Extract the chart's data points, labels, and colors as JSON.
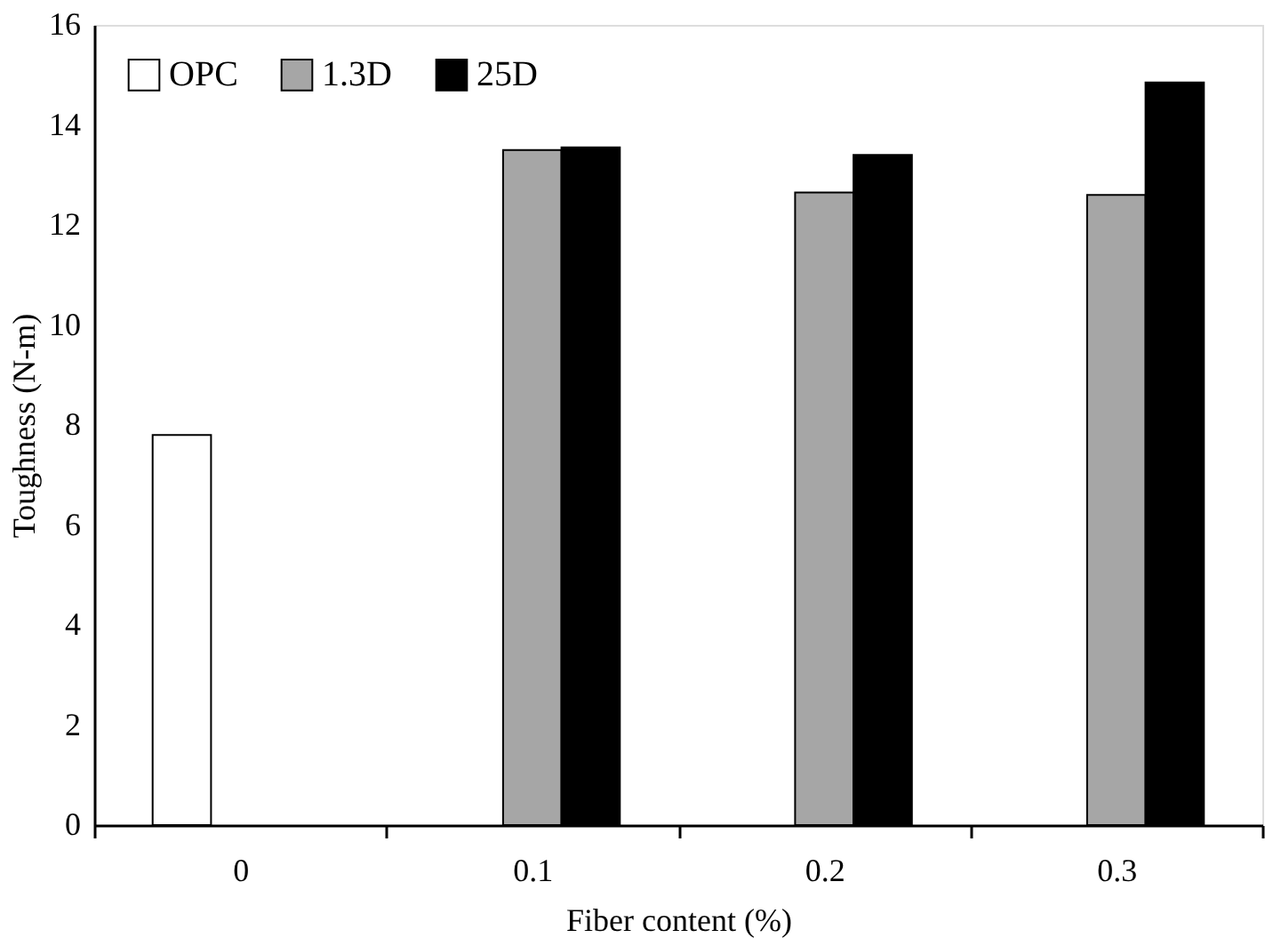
{
  "chart_data": {
    "type": "bar",
    "xlabel": "Fiber content (%)",
    "ylabel": "Toughness (N-m)",
    "categories": [
      "0",
      "0.1",
      "0.2",
      "0.3"
    ],
    "series": [
      {
        "name": "OPC",
        "color": "#ffffff",
        "values": [
          7.8,
          null,
          null,
          null
        ]
      },
      {
        "name": "1.3D",
        "color": "#a6a6a6",
        "values": [
          null,
          13.5,
          12.65,
          12.6
        ]
      },
      {
        "name": "25D",
        "color": "#000000",
        "values": [
          null,
          13.55,
          13.4,
          14.85
        ]
      }
    ],
    "ylim": [
      0,
      16
    ],
    "yticks": [
      0,
      2,
      4,
      6,
      8,
      10,
      12,
      14,
      16
    ],
    "grid": false,
    "legend": "top left"
  }
}
